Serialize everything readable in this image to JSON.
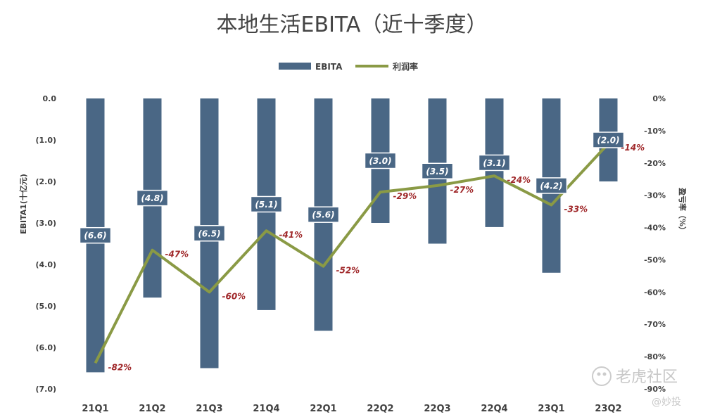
{
  "chart_data": {
    "type": "bar",
    "title": "本地生活EBITA（近十季度）",
    "categories": [
      "21Q1",
      "21Q2",
      "21Q3",
      "21Q4",
      "22Q1",
      "22Q2",
      "22Q3",
      "22Q4",
      "23Q1",
      "23Q2"
    ],
    "series": [
      {
        "name": "EBITA",
        "type": "bar",
        "axis": "left",
        "color": "#4a6785",
        "values": [
          -6.6,
          -4.8,
          -6.5,
          -5.1,
          -5.6,
          -3.0,
          -3.5,
          -3.1,
          -4.2,
          -2.0
        ],
        "labels": [
          "(6.6)",
          "(4.8)",
          "(6.5)",
          "(5.1)",
          "(5.6)",
          "(3.0)",
          "(3.5)",
          "(3.1)",
          "(4.2)",
          "(2.0)"
        ]
      },
      {
        "name": "利润率",
        "type": "line",
        "axis": "right",
        "color": "#8a9a45",
        "values": [
          -82,
          -47,
          -60,
          -41,
          -52,
          -29,
          -27,
          -24,
          -33,
          -14
        ],
        "labels": [
          "-82%",
          "-47%",
          "-60%",
          "-41%",
          "-52%",
          "-29%",
          "-27%",
          "-24%",
          "-33%",
          "-14%"
        ]
      }
    ],
    "y_left": {
      "label": "EBITA1(十亿元)",
      "ylim": [
        -7,
        0
      ],
      "ticks": [
        0,
        -1,
        -2,
        -3,
        -4,
        -5,
        -6,
        -7
      ],
      "tick_labels": [
        "0.0",
        "(1.0)",
        "(2.0)",
        "(3.0)",
        "(4.0)",
        "(5.0)",
        "(6.0)",
        "(7.0)"
      ]
    },
    "y_right": {
      "label": "盈亏率（%）",
      "ylim": [
        -90,
        0
      ],
      "ticks": [
        0,
        -10,
        -20,
        -30,
        -40,
        -50,
        -60,
        -70,
        -80,
        -90
      ],
      "tick_labels": [
        "0%",
        "-10%",
        "-20%",
        "-30%",
        "-40%",
        "-50%",
        "-60%",
        "-70%",
        "-80%",
        "-90%"
      ]
    },
    "legend": {
      "position": "top-center",
      "entries": [
        "EBITA",
        "利润率"
      ]
    },
    "grid": false
  },
  "watermark": {
    "text": "老虎社区",
    "sub": "@妙投"
  }
}
